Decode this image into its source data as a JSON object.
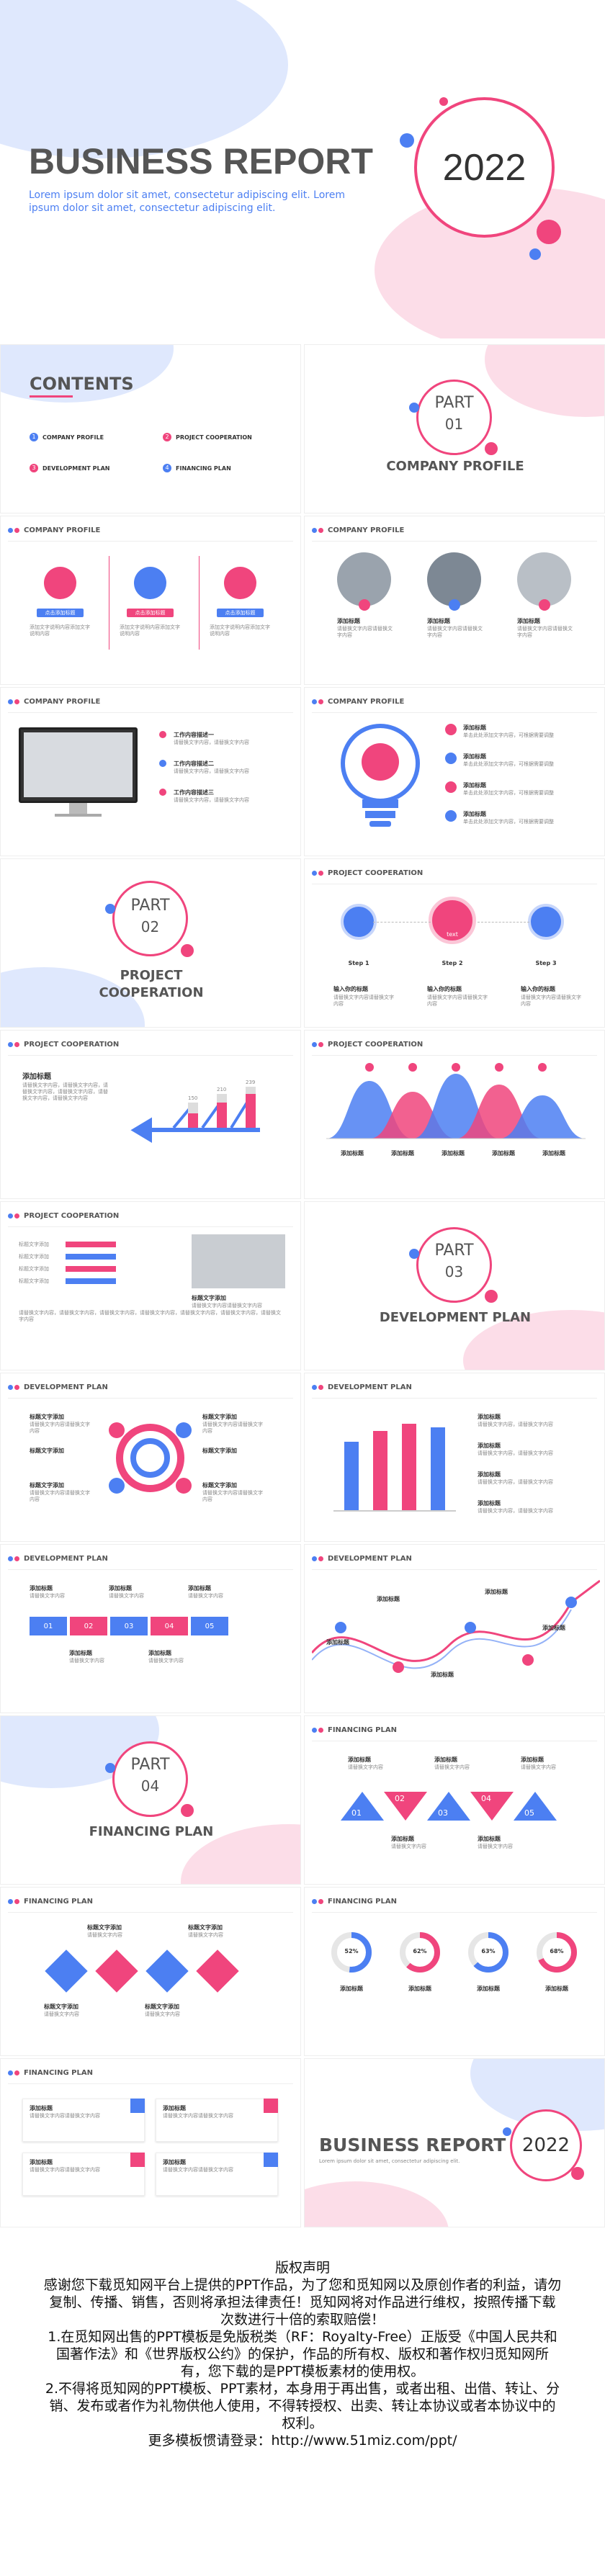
{
  "cover": {
    "title": "BUSINESS REPORT",
    "year": "2022",
    "sub": "Lorem ipsum dolor sit amet, consectetur adipiscing elit. Lorem ipsum dolor sit amet, consectetur adipiscing elit."
  },
  "contents": {
    "title": "CONTENTS",
    "items": [
      {
        "n": "1",
        "t": "COMPANY PROFILE"
      },
      {
        "n": "2",
        "t": "PROJECT COOPERATION"
      },
      {
        "n": "3",
        "t": "DEVELOPMENT PLAN"
      },
      {
        "n": "4",
        "t": "FINANCING PLAN"
      }
    ]
  },
  "parts": [
    {
      "part": "PART",
      "num": "01",
      "title": "COMPANY PROFILE"
    },
    {
      "part": "PART",
      "num": "02",
      "title": "PROJECT\nCOOPERATION"
    },
    {
      "part": "PART",
      "num": "03",
      "title": "DEVELOPMENT PLAN"
    },
    {
      "part": "PART",
      "num": "04",
      "title": "FINANCING PLAN"
    }
  ],
  "headers": {
    "cp": "COMPANY PROFILE",
    "pc": "PROJECT COOPERATION",
    "dp": "DEVELOPMENT PLAN",
    "fp": "FINANCING PLAN"
  },
  "labels": {
    "add": "添加标题",
    "add2": "标题文字添加",
    "add3": "点击添加标题",
    "work1": "工作内容描述一",
    "work2": "工作内容描述二",
    "work3": "工作内容描述三",
    "text": "添加标题",
    "step1": "Step 1",
    "step2": "Step 2",
    "step3": "Step 3",
    "input": "输入你的标题",
    "text_s": "text"
  },
  "steps": [
    "01",
    "02",
    "03",
    "04",
    "05"
  ],
  "percents": [
    "52%",
    "62%",
    "63%",
    "68%"
  ],
  "bars": [
    "150",
    "210",
    "239"
  ],
  "end": {
    "title": "BUSINESS REPORT",
    "year": "2022"
  },
  "copyright": {
    "title": "版权声明",
    "body": "感谢您下载觅知网平台上提供的PPT作品，为了您和觅知网以及原创作者的利益，请勿复制、传播、销售，否则将承担法律责任！觅知网将对作品进行维权，按照传播下载次数进行十倍的索取赔偿！",
    "l1": "1.在觅知网出售的PPT模板是免版税类（RF：Royalty-Free）正版受《中国人民共和国著作法》和《世界版权公约》的保护，作品的所有权、版权和著作权归觅知网所有，您下载的是PPT模板素材的使用权。",
    "l2": "2.不得将觅知网的PPT模板、PPT素材，本身用于再出售，或者出租、出借、转让、分销、发布或者作为礼物供他人使用，不得转授权、出卖、转让本协议或者本协议中的权利。",
    "more": "更多模板惯请登录：http://www.51miz.com/ppt/"
  }
}
